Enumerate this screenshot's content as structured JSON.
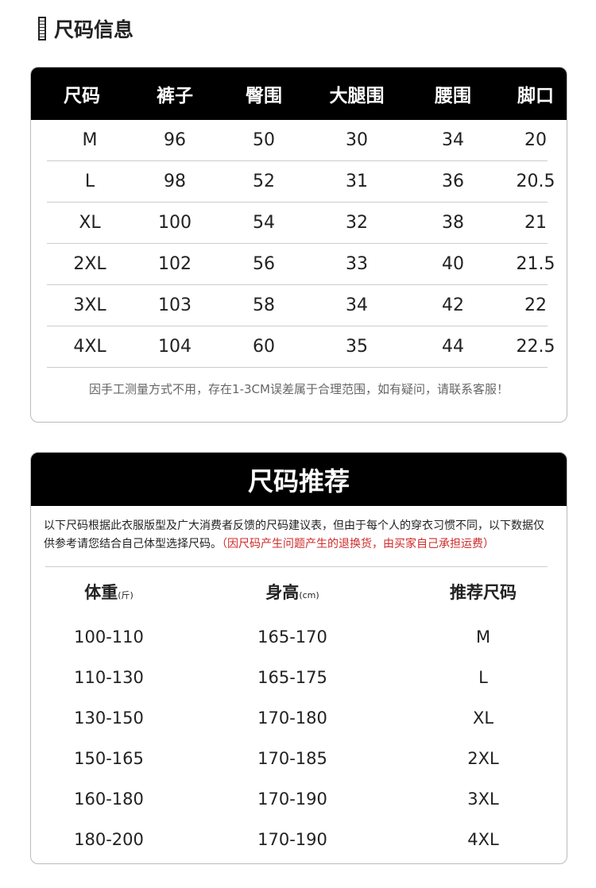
{
  "section_title": "尺码信息",
  "size_table": {
    "headers": [
      "尺码",
      "裤子",
      "臀围",
      "大腿围",
      "腰围",
      "脚口"
    ],
    "rows": [
      [
        "M",
        "96",
        "50",
        "30",
        "34",
        "20"
      ],
      [
        "L",
        "98",
        "52",
        "31",
        "36",
        "20.5"
      ],
      [
        "XL",
        "100",
        "54",
        "32",
        "38",
        "21"
      ],
      [
        "2XL",
        "102",
        "56",
        "33",
        "40",
        "21.5"
      ],
      [
        "3XL",
        "103",
        "58",
        "34",
        "42",
        "22"
      ],
      [
        "4XL",
        "104",
        "60",
        "35",
        "44",
        "22.5"
      ]
    ],
    "note": "因手工测量方式不用，存在1-3CM误差属于合理范围，如有疑问，请联系客服！"
  },
  "recommend": {
    "title": "尺码推荐",
    "intro": "以下尺码根据此衣服版型及广大消费者反馈的尺码建议表，但由于每个人的穿衣习惯不同，以下数据仅供参考请您结合自己体型选择尺码。",
    "warning": "（因尺码产生问题产生的退换货，由买家自己承担运费）",
    "headers": [
      {
        "label": "体重",
        "unit": "(斤)"
      },
      {
        "label": "身高",
        "unit": "(cm)"
      },
      {
        "label": "推荐尺码",
        "unit": ""
      }
    ],
    "rows": [
      [
        "100-110",
        "165-170",
        "M"
      ],
      [
        "110-130",
        "165-175",
        "L"
      ],
      [
        "130-150",
        "170-180",
        "XL"
      ],
      [
        "150-165",
        "170-185",
        "2XL"
      ],
      [
        "160-180",
        "170-190",
        "3XL"
      ],
      [
        "180-200",
        "170-190",
        "4XL"
      ]
    ]
  }
}
